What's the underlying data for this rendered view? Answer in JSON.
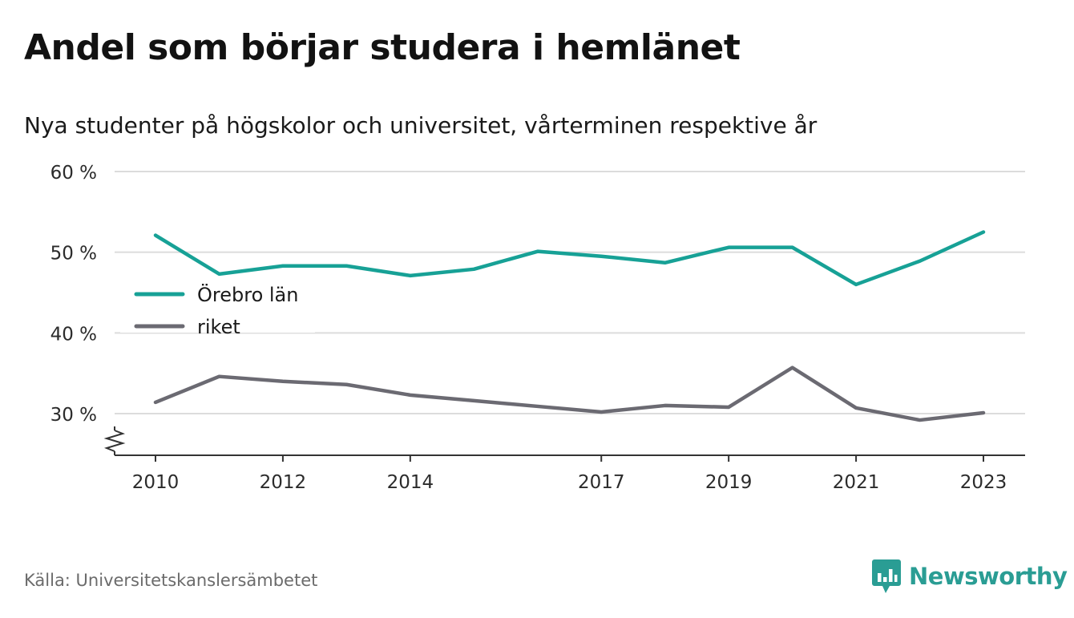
{
  "header": {
    "title": "Andel som börjar studera i hemlänet",
    "subtitle": "Nya studenter på högskolor och universitet, vårterminen respektive år"
  },
  "footer": {
    "source": "Källa: Universitetskanslersämbetet",
    "brand": "Newsworthy",
    "brand_icon": "bar-chart-speech-bubble-icon",
    "brand_color": "#2a9d94"
  },
  "chart_data": {
    "type": "line",
    "title": "Andel som börjar studera i hemlänet",
    "subtitle": "Nya studenter på högskolor och universitet, vårterminen respektive år",
    "xlabel": "",
    "ylabel": "",
    "x": [
      2010,
      2011,
      2012,
      2013,
      2014,
      2015,
      2016,
      2017,
      2018,
      2019,
      2020,
      2021,
      2022,
      2023
    ],
    "x_ticks": [
      "2010",
      "2012",
      "2014",
      "2017",
      "2019",
      "2021",
      "2023"
    ],
    "y_ticks": [
      "60 %",
      "50 %",
      "40 %",
      "30 %"
    ],
    "y_tick_values": [
      60,
      50,
      40,
      30
    ],
    "ylim": [
      25,
      60
    ],
    "xlim": [
      2009.4,
      2023.7
    ],
    "axis_break": true,
    "grid": true,
    "legend_position": "left",
    "series": [
      {
        "name": "Örebro län",
        "color": "#17a196",
        "values": [
          52.1,
          47.3,
          48.3,
          48.3,
          47.1,
          47.9,
          50.1,
          49.5,
          48.7,
          50.6,
          50.6,
          46.0,
          48.9,
          52.5
        ]
      },
      {
        "name": "riket",
        "color": "#6b6a72",
        "values": [
          31.4,
          34.6,
          34.0,
          33.6,
          32.3,
          31.6,
          30.9,
          30.2,
          31.0,
          30.8,
          35.7,
          30.7,
          29.2,
          30.1
        ]
      }
    ]
  }
}
